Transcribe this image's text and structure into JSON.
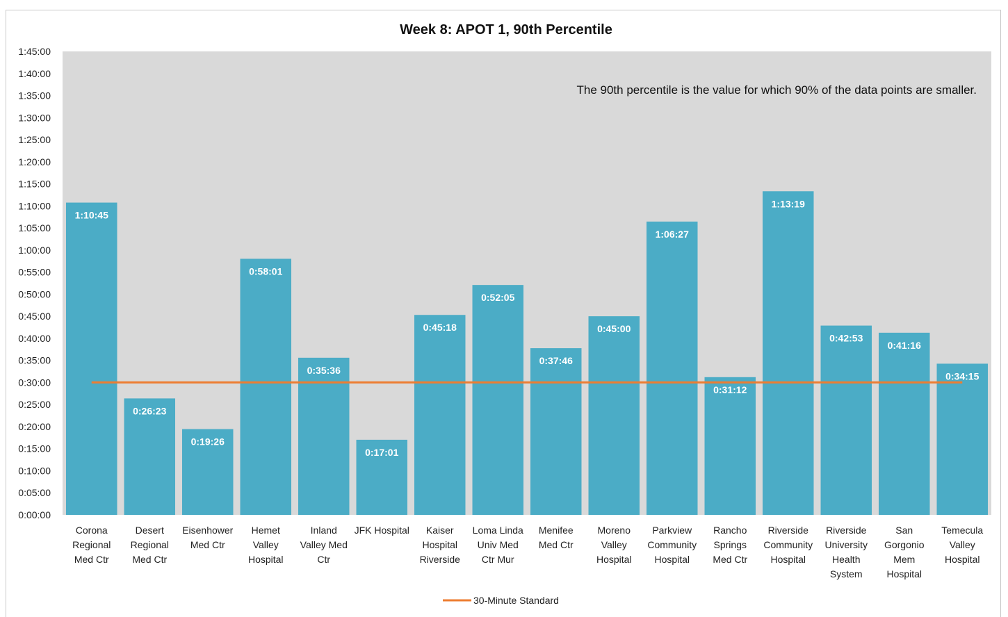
{
  "chart_data": {
    "type": "bar",
    "title": "Week 8: APOT 1, 90th Percentile",
    "annotation": "The 90th percentile is the value for which 90% of the data points are smaller.",
    "categories": [
      "Corona Regional Med Ctr",
      "Desert Regional Med Ctr",
      "Eisenhower Med Ctr",
      "Hemet Valley Hospital",
      "Inland Valley Med Ctr",
      "JFK Hospital",
      "Kaiser Hospital Riverside",
      "Loma Linda Univ Med Ctr Mur",
      "Menifee Med Ctr",
      "Moreno Valley Hospital",
      "Parkview Community Hospital",
      "Rancho Springs Med Ctr",
      "Riverside Community Hospital",
      "Riverside University Health System",
      "San Gorgonio Mem Hospital",
      "Temecula Valley Hospital"
    ],
    "category_lines": [
      [
        "Corona",
        "Regional",
        "Med Ctr"
      ],
      [
        "Desert",
        "Regional",
        "Med Ctr"
      ],
      [
        "Eisenhower",
        "Med Ctr"
      ],
      [
        "Hemet",
        "Valley",
        "Hospital"
      ],
      [
        "Inland",
        "Valley Med",
        "Ctr"
      ],
      [
        "JFK Hospital"
      ],
      [
        "Kaiser",
        "Hospital",
        "Riverside"
      ],
      [
        "Loma Linda",
        "Univ Med",
        "Ctr Mur"
      ],
      [
        "Menifee",
        "Med Ctr"
      ],
      [
        "Moreno",
        "Valley",
        "Hospital"
      ],
      [
        "Parkview",
        "Community",
        "Hospital"
      ],
      [
        "Rancho",
        "Springs",
        "Med Ctr"
      ],
      [
        "Riverside",
        "Community",
        "Hospital"
      ],
      [
        "Riverside",
        "University",
        "Health",
        "System"
      ],
      [
        "San",
        "Gorgonio",
        "Mem",
        "Hospital"
      ],
      [
        "Temecula",
        "Valley",
        "Hospital"
      ]
    ],
    "value_labels": [
      "1:10:45",
      "0:26:23",
      "0:19:26",
      "0:58:01",
      "0:35:36",
      "0:17:01",
      "0:45:18",
      "0:52:05",
      "0:37:46",
      "0:45:00",
      "1:06:27",
      "0:31:12",
      "1:13:19",
      "0:42:53",
      "0:41:16",
      "0:34:15"
    ],
    "values_seconds": [
      4245,
      1583,
      1166,
      3481,
      2136,
      1021,
      2718,
      3125,
      2266,
      2700,
      3987,
      1872,
      4399,
      2573,
      2476,
      2055
    ],
    "yticks": [
      "0:00:00",
      "0:05:00",
      "0:10:00",
      "0:15:00",
      "0:20:00",
      "0:25:00",
      "0:30:00",
      "0:35:00",
      "0:40:00",
      "0:45:00",
      "0:50:00",
      "0:55:00",
      "1:00:00",
      "1:05:00",
      "1:10:00",
      "1:15:00",
      "1:20:00",
      "1:25:00",
      "1:30:00",
      "1:35:00",
      "1:40:00",
      "1:45:00"
    ],
    "ylim_seconds": [
      0,
      6300
    ],
    "reference_line": {
      "name": "30-Minute Standard",
      "value_seconds": 1800,
      "color": "#ED7D31"
    },
    "legend_position": "bottom",
    "bar_color": "#4BACC6",
    "plot_background": "#D9D9D9",
    "grid": false
  }
}
